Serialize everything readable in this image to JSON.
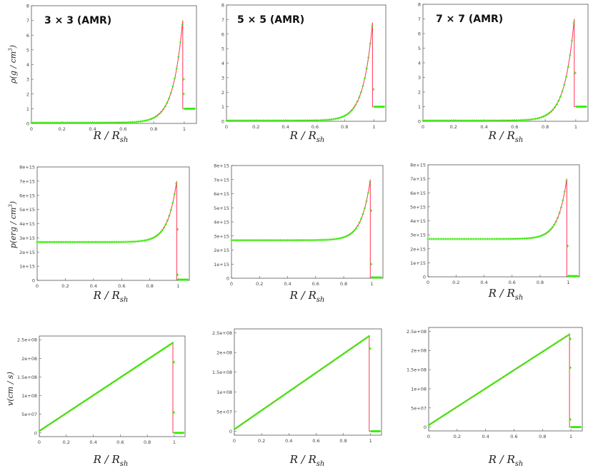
{
  "colors": {
    "points": "#33ee00",
    "line": "#ff3355",
    "axes": "#555555"
  },
  "chart_data": [
    {
      "type": "scatter",
      "title": "3 × 3 (AMR)",
      "xlabel": "R / R",
      "xlabel_sub": "sh",
      "ylabel": "ρ(g / cm",
      "ylabel_sup": "3",
      "ylabel_end": ")",
      "xlim": [
        0,
        1.08
      ],
      "ylim": [
        0,
        8
      ],
      "xticks": [
        0,
        0.2,
        0.4,
        0.6,
        0.8,
        1
      ],
      "xtick_labels": [
        "0",
        "0.2",
        "0.4",
        "0.6",
        "0.8",
        "1"
      ],
      "yticks": [
        0,
        1,
        2,
        3,
        4,
        5,
        6,
        7,
        8
      ],
      "ytick_labels": [
        "0",
        "1",
        "2",
        "3",
        "4",
        "5",
        "6",
        "7",
        "8"
      ],
      "curve": {
        "shape": "exp",
        "base": 0.05,
        "peak": 7.0,
        "k": 16,
        "peak_x": 0.99,
        "drop_points": [
          3.0,
          2.0
        ],
        "post": 1.0,
        "post_x_end": 1.07,
        "line_peak": 7.0
      }
    },
    {
      "type": "scatter",
      "title": "5 × 5 (AMR)",
      "xlabel": "R / R",
      "xlabel_sub": "sh",
      "xlim": [
        0,
        1.08
      ],
      "ylim": [
        0,
        8
      ],
      "xticks": [
        0,
        0.2,
        0.4,
        0.6,
        0.8,
        1
      ],
      "xtick_labels": [
        "0",
        "0.2",
        "0.4",
        "0.6",
        "0.8",
        "1"
      ],
      "yticks": [
        0,
        1,
        2,
        3,
        4,
        5,
        6,
        7,
        8
      ],
      "ytick_labels": [
        "0",
        "1",
        "2",
        "3",
        "4",
        "5",
        "6",
        "7",
        "8"
      ],
      "curve": {
        "shape": "exp",
        "base": 0.05,
        "peak": 6.8,
        "k": 16,
        "peak_x": 0.99,
        "drop_points": [
          2.2
        ],
        "post": 1.0,
        "post_x_end": 1.07,
        "line_peak": 6.8
      }
    },
    {
      "type": "scatter",
      "title": "7 × 7 (AMR)",
      "xlabel": "R / R",
      "xlabel_sub": "sh",
      "xlim": [
        0,
        1.08
      ],
      "ylim": [
        0,
        8
      ],
      "xticks": [
        0,
        0.2,
        0.4,
        0.6,
        0.8,
        1
      ],
      "xtick_labels": [
        "0",
        "0.2",
        "0.4",
        "0.6",
        "0.8",
        "1"
      ],
      "yticks": [
        0,
        1,
        2,
        3,
        4,
        5,
        6,
        7,
        8
      ],
      "ytick_labels": [
        "0",
        "1",
        "2",
        "3",
        "4",
        "5",
        "6",
        "7",
        "8"
      ],
      "curve": {
        "shape": "exp",
        "base": 0.05,
        "peak": 7.0,
        "k": 16,
        "peak_x": 0.99,
        "drop_points": [
          3.3
        ],
        "post": 1.0,
        "post_x_end": 1.07,
        "line_peak": 7.0
      }
    },
    {
      "type": "scatter",
      "xlabel": "R / R",
      "xlabel_sub": "sh",
      "ylabel": "p(erg / cm",
      "ylabel_sup": "3",
      "ylabel_end": ")",
      "xlim": [
        0,
        1.08
      ],
      "ylim": [
        0,
        8
      ],
      "xticks": [
        0,
        0.2,
        0.4,
        0.6,
        0.8,
        1
      ],
      "xtick_labels": [
        "0",
        "0.2",
        "0.4",
        "0.6",
        "0.8",
        "1"
      ],
      "yticks": [
        0,
        1,
        2,
        3,
        4,
        5,
        6,
        7,
        8
      ],
      "ytick_labels": [
        "0",
        "1e+15",
        "2e+15",
        "3e+15",
        "4e+15",
        "5e+15",
        "6e+15",
        "7e+15",
        "8e+15"
      ],
      "curve": {
        "shape": "exp",
        "base": 2.7,
        "peak": 7.0,
        "k": 16,
        "peak_x": 0.99,
        "drop_points": [
          3.6,
          0.4
        ],
        "post": 0.05,
        "post_x_end": 1.07,
        "line_peak": 7.0
      }
    },
    {
      "type": "scatter",
      "xlabel": "R / R",
      "xlabel_sub": "sh",
      "xlim": [
        0,
        1.08
      ],
      "ylim": [
        0,
        8
      ],
      "xticks": [
        0,
        0.2,
        0.4,
        0.6,
        0.8,
        1
      ],
      "xtick_labels": [
        "0",
        "0.2",
        "0.4",
        "0.6",
        "0.8",
        "1"
      ],
      "yticks": [
        0,
        1,
        2,
        3,
        4,
        5,
        6,
        7,
        8
      ],
      "ytick_labels": [
        "0",
        "1e+15",
        "2e+15",
        "3e+15",
        "4e+15",
        "5e+15",
        "6e+15",
        "7e+15",
        "8e+15"
      ],
      "curve": {
        "shape": "exp",
        "base": 2.7,
        "peak": 7.0,
        "k": 16,
        "peak_x": 0.99,
        "drop_points": [
          4.8,
          1.0
        ],
        "post": 0.05,
        "post_x_end": 1.07,
        "line_peak": 7.0
      }
    },
    {
      "type": "scatter",
      "xlabel": "R / R",
      "xlabel_sub": "sh",
      "xlim": [
        0,
        1.08
      ],
      "ylim": [
        0,
        8
      ],
      "xticks": [
        0,
        0.2,
        0.4,
        0.6,
        0.8,
        1
      ],
      "xtick_labels": [
        "0",
        "0.2",
        "0.4",
        "0.6",
        "0.8",
        "1"
      ],
      "yticks": [
        0,
        1,
        2,
        3,
        4,
        5,
        6,
        7,
        8
      ],
      "ytick_labels": [
        "0",
        "1e+15",
        "2e+15",
        "3e+15",
        "4e+15",
        "5e+15",
        "6e+15",
        "7e+15",
        "8e+15"
      ],
      "curve": {
        "shape": "exp",
        "base": 2.7,
        "peak": 7.0,
        "k": 16,
        "peak_x": 0.99,
        "drop_points": [
          2.2
        ],
        "post": 0.05,
        "post_x_end": 1.07,
        "line_peak": 7.0
      }
    },
    {
      "type": "scatter",
      "xlabel": "R / R",
      "xlabel_sub": "sh",
      "ylabel": "v(cm / s)",
      "xlim": [
        0,
        1.08
      ],
      "ylim": [
        -0.1,
        2.6
      ],
      "xticks": [
        0,
        0.2,
        0.4,
        0.6,
        0.8,
        1
      ],
      "xtick_labels": [
        "0",
        "0.2",
        "0.4",
        "0.6",
        "0.8",
        "1"
      ],
      "yticks": [
        0,
        0.5,
        1.0,
        1.5,
        2.0,
        2.5
      ],
      "ytick_labels": [
        "0",
        "5e+07",
        "1e+08",
        "1.5e+08",
        "2e+08",
        "2.5e+08"
      ],
      "curve": {
        "shape": "lin",
        "start": 0.05,
        "peak": 2.42,
        "peak_x": 0.99,
        "drop_points": [
          1.9,
          0.55
        ],
        "post": 0.0,
        "post_x_end": 1.07,
        "line_peak": 2.42
      }
    },
    {
      "type": "scatter",
      "xlabel": "R / R",
      "xlabel_sub": "sh",
      "xlim": [
        0,
        1.08
      ],
      "ylim": [
        -0.1,
        2.6
      ],
      "xticks": [
        0,
        0.2,
        0.4,
        0.6,
        0.8,
        1
      ],
      "xtick_labels": [
        "0",
        "0.2",
        "0.4",
        "0.6",
        "0.8",
        "1"
      ],
      "yticks": [
        0,
        0.5,
        1.0,
        1.5,
        2.0,
        2.5
      ],
      "ytick_labels": [
        "0",
        "5e+07",
        "1e+08",
        "1.5e+08",
        "2e+08",
        "2.5e+08"
      ],
      "curve": {
        "shape": "lin",
        "start": 0.05,
        "peak": 2.42,
        "peak_x": 0.99,
        "drop_points": [
          2.1
        ],
        "post": 0.0,
        "post_x_end": 1.07,
        "line_peak": 2.42
      }
    },
    {
      "type": "scatter",
      "xlabel": "R / R",
      "xlabel_sub": "sh",
      "xlim": [
        0,
        1.08
      ],
      "ylim": [
        -0.1,
        2.6
      ],
      "xticks": [
        0,
        0.2,
        0.4,
        0.6,
        0.8,
        1
      ],
      "xtick_labels": [
        "0",
        "0.2",
        "0.4",
        "0.6",
        "0.8",
        "1"
      ],
      "yticks": [
        0,
        0.5,
        1.0,
        1.5,
        2.0,
        2.5
      ],
      "ytick_labels": [
        "0",
        "5e+07",
        "1e+08",
        "1.5e+08",
        "2e+08",
        "2.5e+08"
      ],
      "curve": {
        "shape": "lin",
        "start": 0.05,
        "peak": 2.42,
        "peak_x": 0.99,
        "drop_points": [
          2.3,
          1.55,
          0.2
        ],
        "post": 0.0,
        "post_x_end": 1.07,
        "line_peak": 2.42
      }
    }
  ]
}
